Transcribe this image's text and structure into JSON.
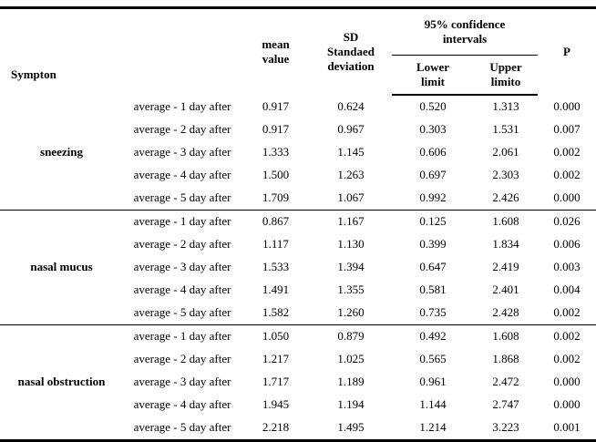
{
  "table": {
    "headers": {
      "symptom": "Sympton",
      "mean": "mean\nvalue",
      "sd": "SD\nStandaed\ndeviation",
      "ci": "95% confidence\nintervals",
      "lower": "Lower\nlimit",
      "upper": "Upper\nlimito",
      "p": "P"
    },
    "groups": [
      {
        "symptom": "sneezing",
        "rows": [
          {
            "label": "average - 1 day after",
            "mean": "0.917",
            "sd": "0.624",
            "lower": "0.520",
            "upper": "1.313",
            "p": "0.000"
          },
          {
            "label": "average - 2 day after",
            "mean": "0.917",
            "sd": "0.967",
            "lower": "0.303",
            "upper": "1.531",
            "p": "0.007"
          },
          {
            "label": "average - 3 day after",
            "mean": "1.333",
            "sd": "1.145",
            "lower": "0.606",
            "upper": "2.061",
            "p": "0.002"
          },
          {
            "label": "average - 4 day after",
            "mean": "1.500",
            "sd": "1.263",
            "lower": "0.697",
            "upper": "2.303",
            "p": "0.002"
          },
          {
            "label": "average - 5 day after",
            "mean": "1.709",
            "sd": "1.067",
            "lower": "0.992",
            "upper": "2.426",
            "p": "0.000"
          }
        ]
      },
      {
        "symptom": "nasal mucus",
        "rows": [
          {
            "label": "average - 1 day after",
            "mean": "0.867",
            "sd": "1.167",
            "lower": "0.125",
            "upper": "1.608",
            "p": "0.026"
          },
          {
            "label": "average - 2 day after",
            "mean": "1.117",
            "sd": "1.130",
            "lower": "0.399",
            "upper": "1.834",
            "p": "0.006"
          },
          {
            "label": "average - 3 day after",
            "mean": "1.533",
            "sd": "1.394",
            "lower": "0.647",
            "upper": "2.419",
            "p": "0.003"
          },
          {
            "label": "average - 4 day after",
            "mean": "1.491",
            "sd": "1.355",
            "lower": "0.581",
            "upper": "2.401",
            "p": "0.004"
          },
          {
            "label": "average - 5 day after",
            "mean": "1.582",
            "sd": "1.260",
            "lower": "0.735",
            "upper": "2.428",
            "p": "0.002"
          }
        ]
      },
      {
        "symptom": "nasal obstruction",
        "rows": [
          {
            "label": "average - 1 day after",
            "mean": "1.050",
            "sd": "0.879",
            "lower": "0.492",
            "upper": "1.608",
            "p": "0.002"
          },
          {
            "label": "average - 2 day after",
            "mean": "1.217",
            "sd": "1.025",
            "lower": "0.565",
            "upper": "1.868",
            "p": "0.002"
          },
          {
            "label": "average - 3 day after",
            "mean": "1.717",
            "sd": "1.189",
            "lower": "0.961",
            "upper": "2.472",
            "p": "0.000"
          },
          {
            "label": "average - 4 day after",
            "mean": "1.945",
            "sd": "1.194",
            "lower": "1.144",
            "upper": "2.747",
            "p": "0.000"
          },
          {
            "label": "average - 5 day after",
            "mean": "2.218",
            "sd": "1.495",
            "lower": "1.214",
            "upper": "3.223",
            "p": "0.001"
          }
        ]
      }
    ]
  }
}
